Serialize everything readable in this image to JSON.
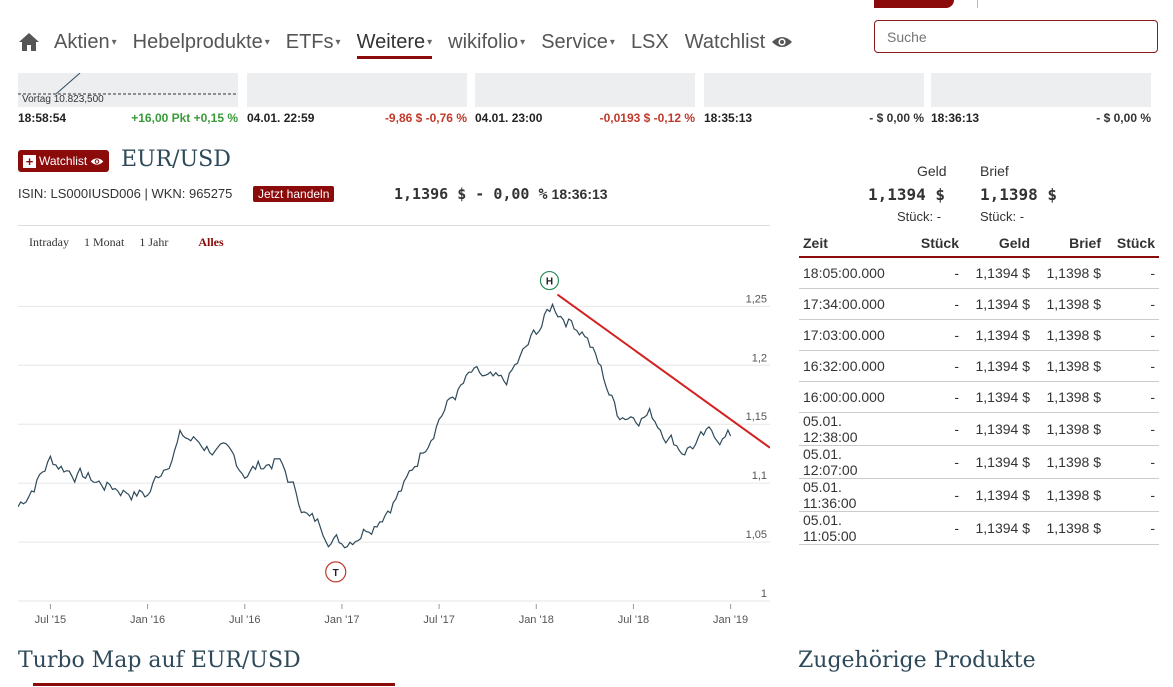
{
  "nav": {
    "items": [
      {
        "label": "Aktien",
        "caret": true,
        "active": false
      },
      {
        "label": "Hebelprodukte",
        "caret": true,
        "active": false
      },
      {
        "label": "ETFs",
        "caret": true,
        "active": false
      },
      {
        "label": "Weitere",
        "caret": true,
        "active": true
      },
      {
        "label": "wikifolio",
        "caret": true,
        "active": false
      },
      {
        "label": "Service",
        "caret": true,
        "active": false
      },
      {
        "label": "LSX",
        "caret": false,
        "active": false
      },
      {
        "label": "Watchlist",
        "caret": false,
        "active": false,
        "icon": "eye-icon"
      }
    ],
    "search_placeholder": "Suche"
  },
  "tiles": [
    {
      "time": "18:58:54",
      "change": "+16,00 Pkt +0,15 %",
      "trend": "pos",
      "vortag": "Vortag 10.823,500"
    },
    {
      "time": "04.01. 22:59",
      "change": "-9,86 $ -0,76 %",
      "trend": "neg"
    },
    {
      "time": "04.01. 23:00",
      "change": "-0,0193 $ -0,12 %",
      "trend": "neg"
    },
    {
      "time": "18:35:13",
      "change": "- $ 0,00 %",
      "trend": "neu"
    },
    {
      "time": "18:36:13",
      "change": "- $ 0,00 %",
      "trend": "neu"
    }
  ],
  "header": {
    "watchlist_label": "Watchlist",
    "title": "EUR/USD",
    "isin": "ISIN: LS000IUSD006 | WKN: 965275",
    "trade_label": "Jetzt handeln",
    "price": "1,1396 $ - 0,00 %",
    "time": "18:36:13",
    "geld_label": "Geld",
    "brief_label": "Brief",
    "geld_value": "1,1394 $",
    "brief_value": "1,1398 $",
    "geld_stueck": "Stück: -",
    "brief_stueck": "Stück: -"
  },
  "ranges": [
    "Intraday",
    "1 Monat",
    "1 Jahr",
    "Alles"
  ],
  "chart_data": {
    "type": "line",
    "x": [
      "2015-05",
      "2015-07",
      "2015-10",
      "2016-01",
      "2016-03",
      "2016-05",
      "2016-07",
      "2016-09",
      "2016-11",
      "2017-01",
      "2017-03",
      "2017-05",
      "2017-07",
      "2017-09",
      "2017-11",
      "2018-02",
      "2018-04",
      "2018-06",
      "2018-08",
      "2018-10",
      "2018-12",
      "2019-01"
    ],
    "values": [
      1.08,
      1.12,
      1.1,
      1.09,
      1.14,
      1.13,
      1.11,
      1.12,
      1.07,
      1.05,
      1.07,
      1.1,
      1.16,
      1.19,
      1.18,
      1.25,
      1.23,
      1.16,
      1.16,
      1.13,
      1.14,
      1.14
    ],
    "xticks": [
      "Jul '15",
      "Jan '16",
      "Jul '16",
      "Jan '17",
      "Jul '17",
      "Jan '18",
      "Jul '18",
      "Jan '19"
    ],
    "yticks": [
      "1",
      "1,05",
      "1,1",
      "1,15",
      "1,2",
      "1,25"
    ],
    "ylim": [
      1.0,
      1.28
    ],
    "high_label": "H",
    "low_label": "T",
    "trendline": {
      "from": [
        "2018-02",
        1.26
      ],
      "to": [
        "2019-03",
        1.13
      ]
    }
  },
  "table": {
    "headers": [
      "Zeit",
      "Stück",
      "Geld",
      "Brief",
      "Stück"
    ],
    "rows": [
      [
        "18:05:00.000",
        "-",
        "1,1394 $",
        "1,1398 $",
        "-"
      ],
      [
        "17:34:00.000",
        "-",
        "1,1394 $",
        "1,1398 $",
        "-"
      ],
      [
        "17:03:00.000",
        "-",
        "1,1394 $",
        "1,1398 $",
        "-"
      ],
      [
        "16:32:00.000",
        "-",
        "1,1394 $",
        "1,1398 $",
        "-"
      ],
      [
        "16:00:00.000",
        "-",
        "1,1394 $",
        "1,1398 $",
        "-"
      ],
      [
        "05.01. 12:38:00",
        "-",
        "1,1394 $",
        "1,1398 $",
        "-"
      ],
      [
        "05.01. 12:07:00",
        "-",
        "1,1394 $",
        "1,1398 $",
        "-"
      ],
      [
        "05.01. 11:36:00",
        "-",
        "1,1394 $",
        "1,1398 $",
        "-"
      ],
      [
        "05.01. 11:05:00",
        "-",
        "1,1394 $",
        "1,1398 $",
        "-"
      ]
    ]
  },
  "sections": {
    "turbo_title": "Turbo Map auf EUR/USD",
    "products_title": "Zugehörige Produkte"
  },
  "colors": {
    "brand": "#8b0a0a",
    "line": "#2e4a5a",
    "trend": "#d42020",
    "pos": "#3a9a3a",
    "neg": "#c0392b"
  }
}
